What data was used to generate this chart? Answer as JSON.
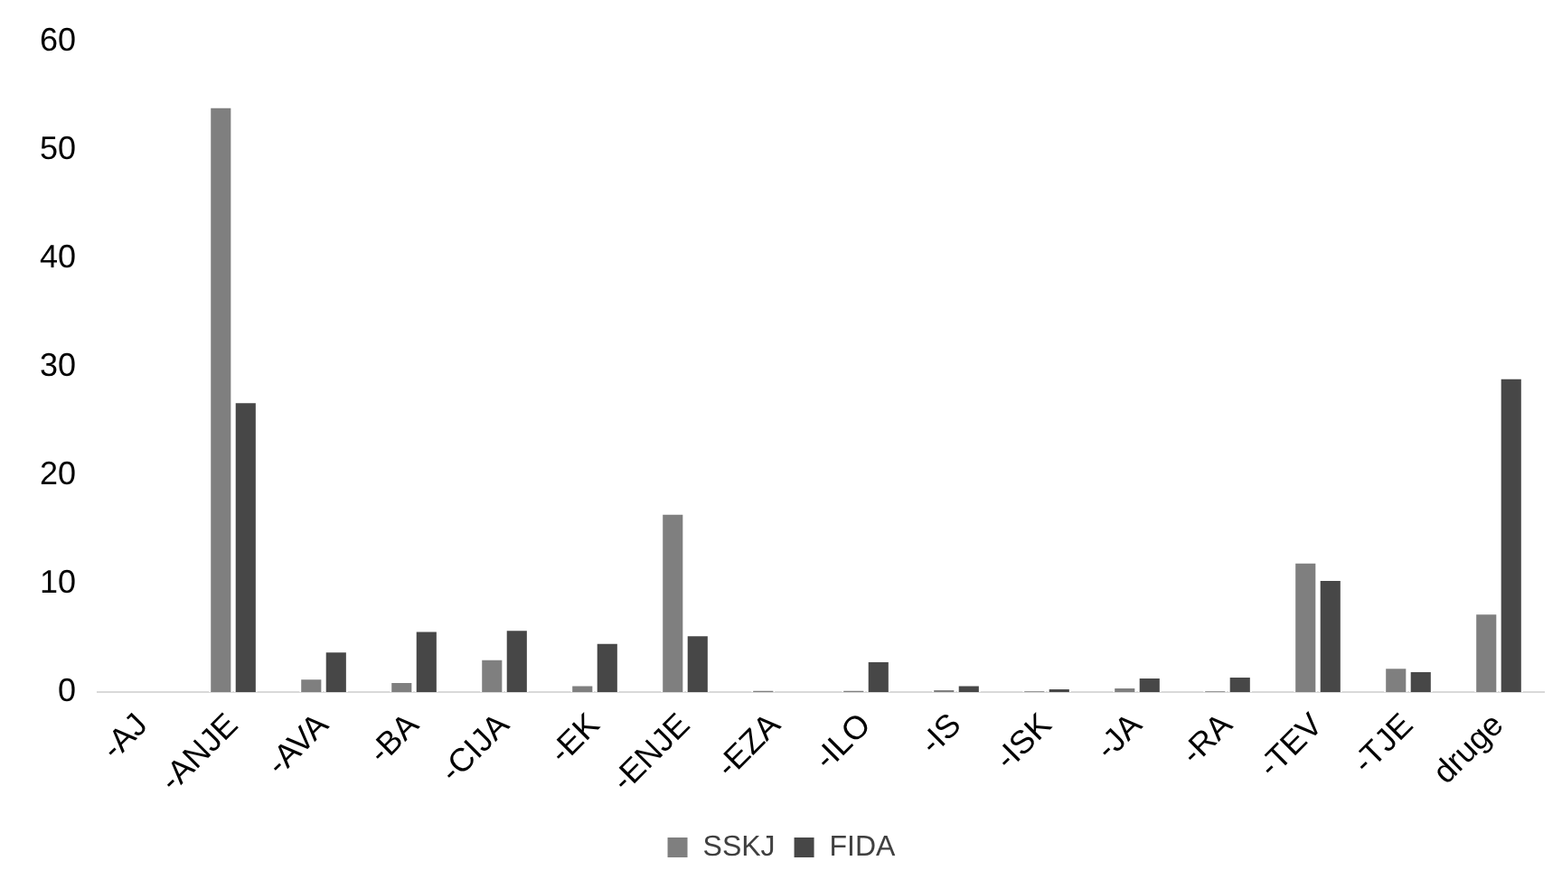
{
  "chart_data": {
    "type": "bar",
    "categories": [
      "-AJ",
      "-ANJE",
      "-AVA",
      "-BA",
      "-CIJA",
      "-EK",
      "-ENJE",
      "-EZA",
      "-ILO",
      "-IS",
      "-ISK",
      "-JA",
      "-RA",
      "-TEV",
      "-TJE",
      "druge"
    ],
    "series": [
      {
        "name": "SSKJ",
        "color": "#7f7f7f",
        "values": [
          0,
          54,
          1.3,
          1.0,
          3.1,
          0.7,
          16.5,
          0.2,
          0.2,
          0.3,
          0.1,
          0.5,
          0.1,
          12,
          2.3,
          7.3
        ]
      },
      {
        "name": "FIDA",
        "color": "#474747",
        "values": [
          0,
          26.8,
          3.8,
          5.7,
          5.8,
          4.6,
          5.3,
          0,
          2.9,
          0.7,
          0.4,
          1.4,
          1.5,
          10.4,
          2.0,
          29
        ]
      }
    ],
    "ylim": [
      0,
      60
    ],
    "yticks": [
      0,
      10,
      20,
      30,
      40,
      50,
      60
    ],
    "grid": false,
    "legend": "bottom"
  }
}
